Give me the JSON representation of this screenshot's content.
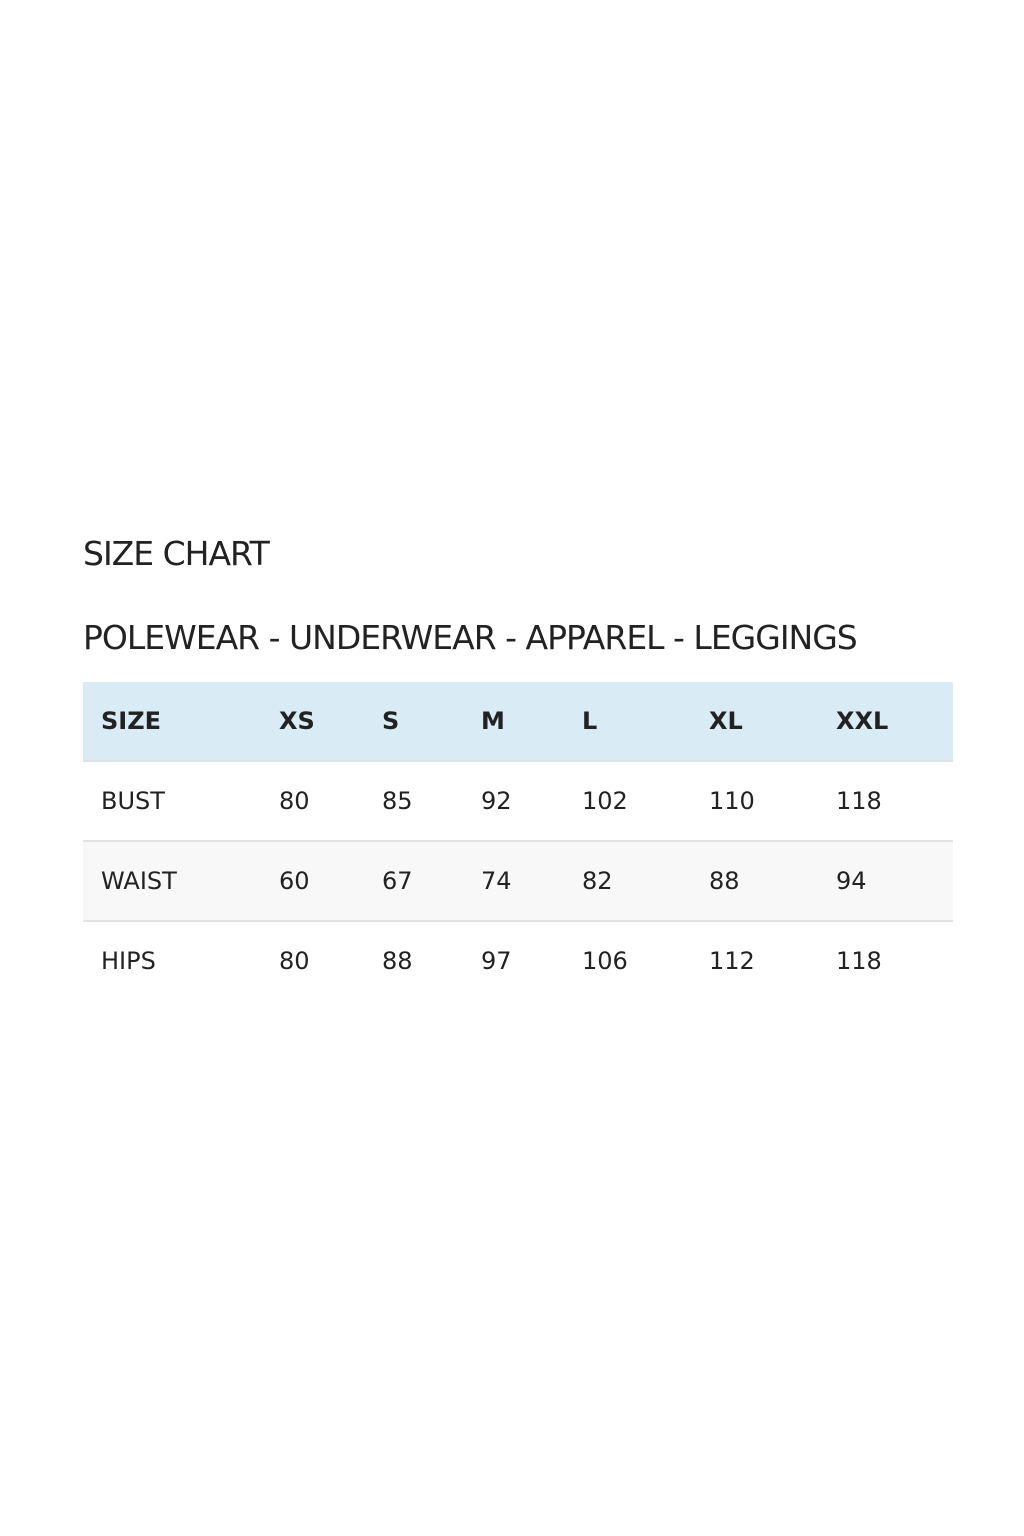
{
  "title": "SIZE CHART",
  "subtitle": "POLEWEAR - UNDERWEAR - APPAREL - LEGGINGS",
  "colors": {
    "header_bg": "#d9ebf5",
    "alt_row_bg": "#f8f8f8"
  },
  "table": {
    "headers": [
      "SIZE",
      "XS",
      "S",
      "M",
      "L",
      "XL",
      "XXL"
    ],
    "rows": [
      [
        "BUST",
        "80",
        "85",
        "92",
        "102",
        "110",
        "118"
      ],
      [
        "WAIST",
        "60",
        "67",
        "74",
        "82",
        "88",
        "94"
      ],
      [
        "HIPS",
        "80",
        "88",
        "97",
        "106",
        "112",
        "118"
      ]
    ]
  }
}
